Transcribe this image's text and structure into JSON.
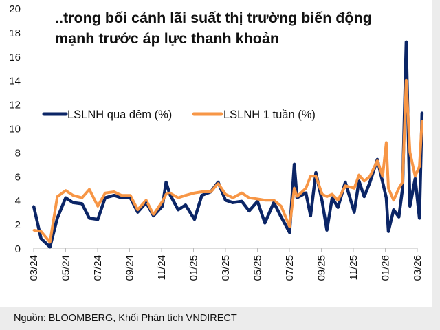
{
  "chart_data": {
    "type": "line",
    "title": "..trong bối cảnh lãi suất thị trường biến động mạnh trước áp lực thanh khoản",
    "source": "Nguồn: BLOOMBERG, Khối Phân tích VNDIRECT",
    "ylim": [
      0,
      20
    ],
    "yticks": [
      "0",
      "2",
      "4",
      "6",
      "8",
      "10",
      "12",
      "14",
      "16",
      "18",
      "20"
    ],
    "xticks": [
      "03/24",
      "05/24",
      "07/24",
      "09/24",
      "11/24",
      "01/25",
      "03/25",
      "05/25",
      "07/25",
      "09/25",
      "11/25",
      "01/26",
      "03/26"
    ],
    "xlim": [
      "2024-03-01",
      "2026-03-10"
    ],
    "grid": false,
    "legend": "top",
    "x": [
      "2024-03-01",
      "2024-03-15",
      "2024-04-01",
      "2024-04-15",
      "2024-05-01",
      "2024-05-15",
      "2024-06-01",
      "2024-06-15",
      "2024-07-01",
      "2024-07-15",
      "2024-08-01",
      "2024-08-15",
      "2024-09-01",
      "2024-09-15",
      "2024-10-01",
      "2024-10-15",
      "2024-11-01",
      "2024-11-08",
      "2024-11-15",
      "2024-12-01",
      "2024-12-15",
      "2025-01-01",
      "2025-01-15",
      "2025-02-01",
      "2025-02-15",
      "2025-03-01",
      "2025-03-15",
      "2025-04-01",
      "2025-04-15",
      "2025-05-01",
      "2025-05-15",
      "2025-06-01",
      "2025-06-15",
      "2025-07-01",
      "2025-07-10",
      "2025-07-15",
      "2025-08-01",
      "2025-08-10",
      "2025-08-20",
      "2025-09-01",
      "2025-09-10",
      "2025-09-20",
      "2025-10-01",
      "2025-10-15",
      "2025-11-01",
      "2025-11-10",
      "2025-11-20",
      "2025-12-01",
      "2025-12-15",
      "2025-12-25",
      "2026-01-01",
      "2026-01-05",
      "2026-01-15",
      "2026-01-25",
      "2026-02-01",
      "2026-02-08",
      "2026-02-15",
      "2026-02-25",
      "2026-03-05",
      "2026-03-10"
    ],
    "series": [
      {
        "name": "LSLNH qua đêm (%)",
        "color": "#0b2566",
        "values": [
          3.5,
          0.8,
          0.1,
          2.5,
          4.2,
          3.8,
          3.7,
          2.5,
          2.4,
          4.2,
          4.4,
          4.2,
          4.2,
          3.0,
          3.8,
          2.7,
          3.5,
          5.5,
          4.5,
          3.2,
          3.6,
          2.4,
          4.4,
          4.7,
          5.5,
          4.0,
          3.8,
          3.9,
          3.1,
          3.9,
          2.1,
          3.8,
          2.6,
          1.3,
          7.0,
          4.2,
          4.6,
          2.7,
          6.3,
          3.9,
          1.5,
          4.2,
          3.4,
          5.5,
          3.0,
          5.6,
          4.3,
          5.5,
          7.4,
          5.5,
          4.2,
          1.4,
          3.2,
          2.6,
          5.0,
          17.2,
          3.5,
          5.8,
          2.5,
          11.3
        ]
      },
      {
        "name": "LSLNH 1 tuần (%)",
        "color": "#f79646",
        "values": [
          1.5,
          1.4,
          0.5,
          4.3,
          4.8,
          4.4,
          4.2,
          4.9,
          3.5,
          4.6,
          4.7,
          4.4,
          4.4,
          3.2,
          4.0,
          2.8,
          3.9,
          4.5,
          4.6,
          4.2,
          4.4,
          4.6,
          4.7,
          4.7,
          5.4,
          4.5,
          4.2,
          4.6,
          4.2,
          4.1,
          4.0,
          4.0,
          3.5,
          1.8,
          5.0,
          4.3,
          5.0,
          6.0,
          6.0,
          4.5,
          4.3,
          4.5,
          4.0,
          5.2,
          5.0,
          6.1,
          5.6,
          6.0,
          7.3,
          6.0,
          8.8,
          5.0,
          4.0,
          5.0,
          5.5,
          14.0,
          8.0,
          6.0,
          6.8,
          10.6
        ]
      }
    ]
  }
}
